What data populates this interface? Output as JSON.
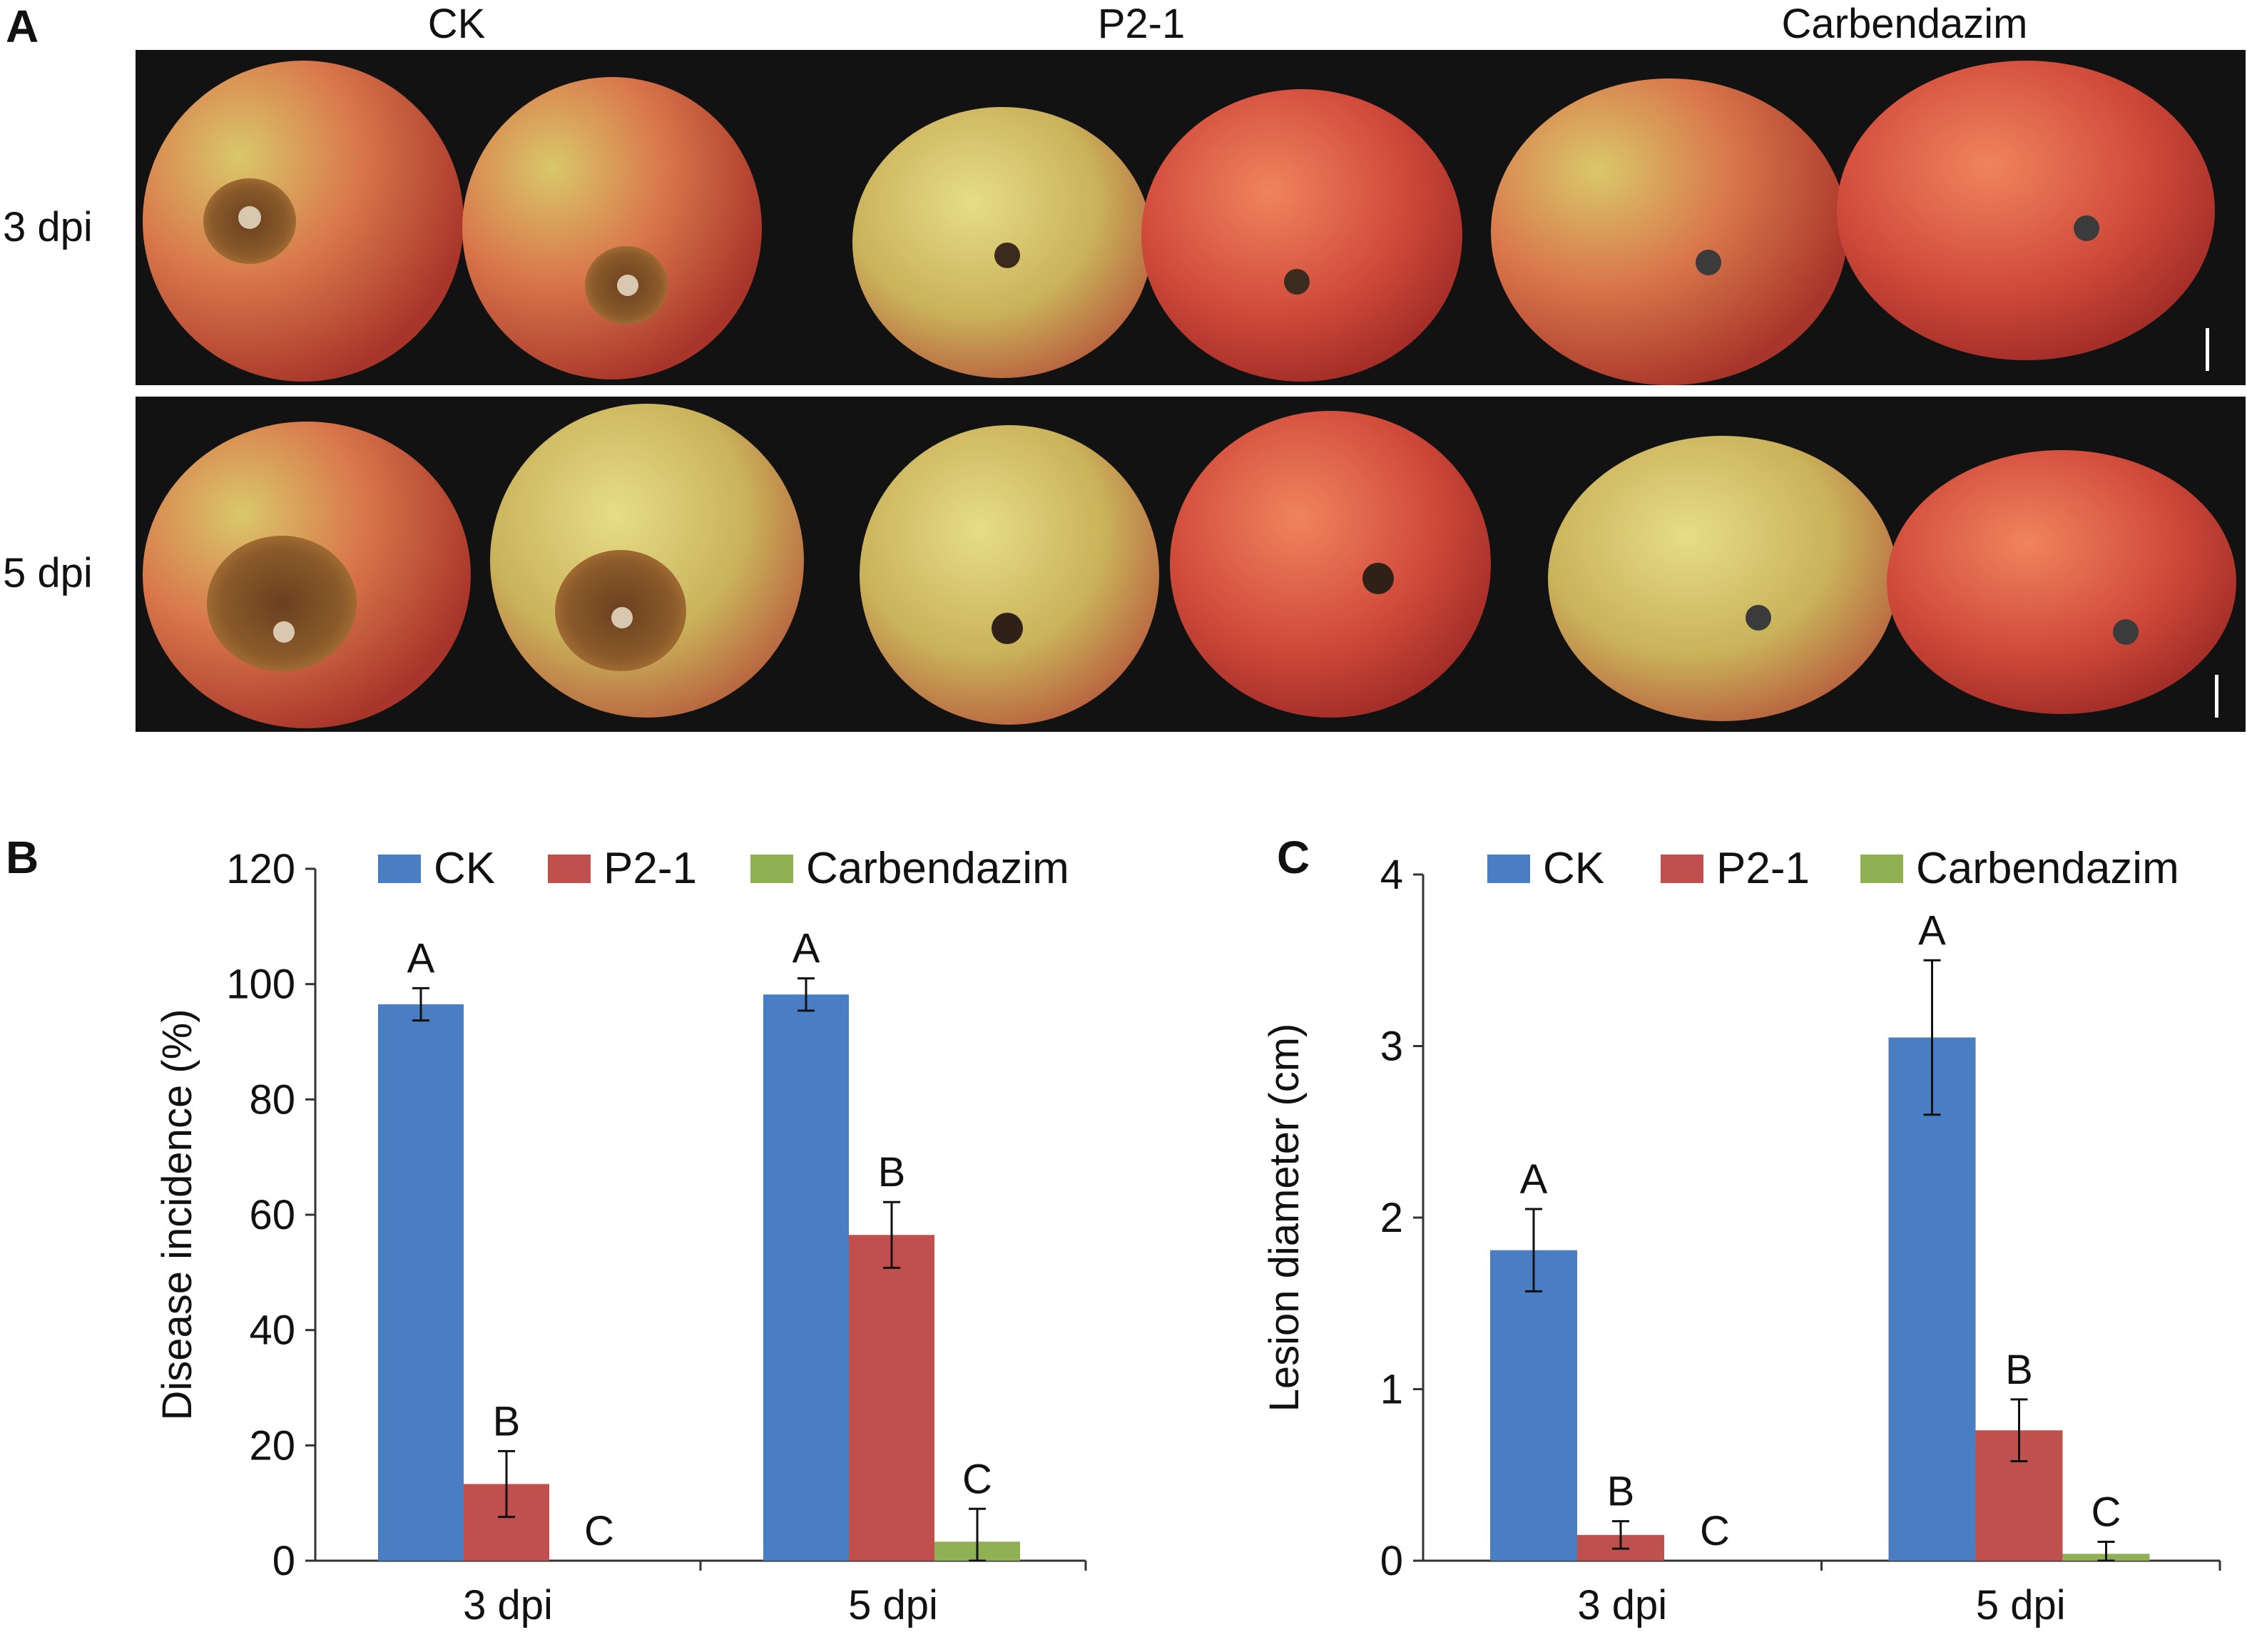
{
  "panels": {
    "A": {
      "letter": "A",
      "column_titles": [
        "CK",
        "P2-1",
        "Carbendazim"
      ],
      "row_labels": [
        "3 dpi",
        "5 dpi"
      ]
    },
    "B": {
      "letter": "B"
    },
    "C": {
      "letter": "C"
    }
  },
  "colors": {
    "CK": "#4a7ec3",
    "P2-1": "#c0504d",
    "Carbendazim": "#8fb153"
  },
  "chart_data": [
    {
      "type": "bar",
      "panel": "B",
      "title": "",
      "xlabel": "",
      "ylabel": "Disease incidence (%)",
      "ylim": [
        0,
        120
      ],
      "yticks": [
        0,
        20,
        40,
        60,
        80,
        100,
        120
      ],
      "ytick_labels": [
        "0",
        "20",
        "40",
        "60",
        "80",
        "100",
        "120"
      ],
      "categories": [
        "3 dpi",
        "5 dpi"
      ],
      "legend": [
        "CK",
        "P2-1",
        "Carbendazim"
      ],
      "legend_position": "top",
      "series": [
        {
          "name": "CK",
          "values": [
            96.5,
            98.2
          ],
          "errors": [
            2.8,
            2.8
          ],
          "letters": [
            "A",
            "A"
          ]
        },
        {
          "name": "P2-1",
          "values": [
            13.3,
            56.5
          ],
          "errors": [
            5.7,
            5.7
          ],
          "letters": [
            "B",
            "B"
          ]
        },
        {
          "name": "Carbendazim",
          "values": [
            0,
            3.3
          ],
          "errors": [
            0,
            5.7
          ],
          "letters": [
            "C",
            "C"
          ]
        }
      ]
    },
    {
      "type": "bar",
      "panel": "C",
      "title": "",
      "xlabel": "",
      "ylabel": "Lesion diameter (cm)",
      "ylim": [
        0,
        4
      ],
      "yticks": [
        0,
        1,
        2,
        3,
        4
      ],
      "ytick_labels": [
        "0",
        "1",
        "2",
        "3",
        "4"
      ],
      "categories": [
        "3 dpi",
        "5 dpi"
      ],
      "legend": [
        "CK",
        "P2-1",
        "Carbendazim"
      ],
      "legend_position": "top",
      "series": [
        {
          "name": "CK",
          "values": [
            1.81,
            3.05
          ],
          "errors": [
            0.24,
            0.45
          ],
          "letters": [
            "A",
            "A"
          ]
        },
        {
          "name": "P2-1",
          "values": [
            0.15,
            0.76
          ],
          "errors": [
            0.08,
            0.18
          ],
          "letters": [
            "B",
            "B"
          ]
        },
        {
          "name": "Carbendazim",
          "values": [
            0,
            0.04
          ],
          "errors": [
            0,
            0.07
          ],
          "letters": [
            "C",
            "C"
          ]
        }
      ]
    }
  ]
}
